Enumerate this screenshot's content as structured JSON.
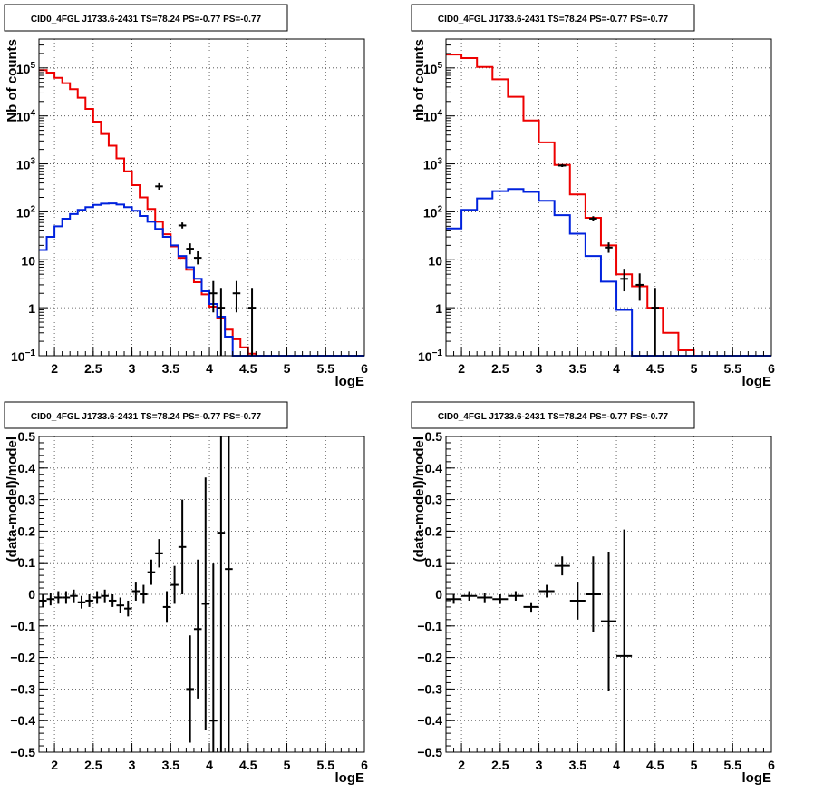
{
  "colors": {
    "data": "#000000",
    "total_model": "#ee0000",
    "component": "#0022dd",
    "grid": "#444444"
  },
  "chart_data": [
    {
      "type": "line",
      "title": "CID0_4FGL J1733.6-2431 TS=78.24 PS=-0.77 PS=-0.77",
      "xlabel": "logE",
      "ylabel": "Nb of counts",
      "xlim": [
        1.8,
        6.0
      ],
      "ylim": [
        0.1,
        400000
      ],
      "yscale": "log",
      "grid": true,
      "xticks": [
        "2",
        "2.5",
        "3",
        "3.5",
        "4",
        "4.5",
        "5",
        "5.5",
        "6"
      ],
      "yticks": [
        {
          "v": 0.1,
          "base": "10",
          "exp": "−1"
        },
        {
          "v": 1,
          "base": "1",
          "exp": ""
        },
        {
          "v": 10,
          "base": "10",
          "exp": ""
        },
        {
          "v": 100,
          "base": "10",
          "exp": "2"
        },
        {
          "v": 1000,
          "base": "10",
          "exp": "3"
        },
        {
          "v": 10000,
          "base": "10",
          "exp": "4"
        },
        {
          "v": 100000,
          "base": "10",
          "exp": "5"
        }
      ],
      "bin_edges": [
        1.8,
        1.9,
        2.0,
        2.1,
        2.2,
        2.3,
        2.4,
        2.5,
        2.6,
        2.7,
        2.8,
        2.9,
        3.0,
        3.1,
        3.2,
        3.3,
        3.4,
        3.5,
        3.6,
        3.7,
        3.8,
        3.9,
        4.0,
        4.1,
        4.2,
        4.3,
        4.4,
        4.5,
        4.6,
        4.7,
        4.8,
        4.9,
        5.0,
        5.1,
        5.2,
        5.3,
        5.4,
        5.5,
        5.6,
        5.7,
        5.8,
        5.9,
        6.0
      ],
      "series": [
        {
          "kind": "hist",
          "color": "total_model",
          "values": [
            90000,
            80000,
            62000,
            48000,
            36000,
            24000,
            14000,
            7600,
            4200,
            2400,
            1300,
            700,
            360,
            200,
            115,
            62,
            34,
            19,
            11,
            6.2,
            3.4,
            1.9,
            1.05,
            0.6,
            0.35,
            0.22,
            0.15,
            0.11,
            0.1,
            0.1,
            0.1,
            0.1,
            0.1,
            0.1,
            0.1,
            0.1,
            0.1,
            0.1,
            0.1,
            0.1,
            0.1,
            0.1
          ]
        },
        {
          "kind": "hist",
          "color": "component",
          "values": [
            16,
            30,
            50,
            72,
            90,
            110,
            125,
            140,
            148,
            150,
            142,
            125,
            105,
            82,
            62,
            44,
            30,
            20,
            12,
            7,
            4,
            2.2,
            1.2,
            0.65,
            0.25,
            0.1,
            0.1,
            0.1,
            0.1,
            0.1,
            0.1,
            0.1,
            0.1,
            0.1,
            0.1,
            0.1,
            0.1,
            0.1,
            0.1,
            0.1,
            0.1,
            0.1
          ]
        },
        {
          "kind": "errorbar",
          "color": "data",
          "points": [
            [
              3.35,
              340,
              290,
              395
            ],
            [
              3.65,
              52,
              45,
              60
            ],
            [
              3.75,
              17,
              13,
              22
            ],
            [
              3.85,
              11,
              8,
              15
            ],
            [
              4.05,
              2,
              0.8,
              3.6
            ],
            [
              4.15,
              1,
              0.1,
              2.6
            ],
            [
              4.35,
              2,
              0.8,
              3.6
            ],
            [
              4.55,
              1,
              0.1,
              2.6
            ]
          ]
        }
      ]
    },
    {
      "type": "line",
      "title": "CID0_4FGL J1733.6-2431 TS=78.24 PS=-0.77 PS=-0.77",
      "xlabel": "logE",
      "ylabel": "nb of counts",
      "xlim": [
        1.8,
        6.0
      ],
      "ylim": [
        0.1,
        400000
      ],
      "yscale": "log",
      "grid": true,
      "xticks": [
        "2",
        "2.5",
        "3",
        "3.5",
        "4",
        "4.5",
        "5",
        "5.5",
        "6"
      ],
      "yticks": [
        {
          "v": 0.1,
          "base": "10",
          "exp": "−1"
        },
        {
          "v": 1,
          "base": "1",
          "exp": ""
        },
        {
          "v": 10,
          "base": "10",
          "exp": ""
        },
        {
          "v": 100,
          "base": "10",
          "exp": "2"
        },
        {
          "v": 1000,
          "base": "10",
          "exp": "3"
        },
        {
          "v": 10000,
          "base": "10",
          "exp": "4"
        },
        {
          "v": 100000,
          "base": "10",
          "exp": "5"
        }
      ],
      "bin_edges": [
        1.8,
        2.0,
        2.2,
        2.4,
        2.6,
        2.8,
        3.0,
        3.2,
        3.4,
        3.6,
        3.8,
        4.0,
        4.2,
        4.4,
        4.6,
        4.8,
        5.0,
        5.2,
        5.4,
        5.6,
        5.8,
        6.0
      ],
      "series": [
        {
          "kind": "hist",
          "color": "total_model",
          "values": [
            190000,
            160000,
            105000,
            58000,
            25000,
            8000,
            2800,
            950,
            230,
            75,
            20,
            5,
            2.8,
            1,
            0.3,
            0.13,
            0.1,
            0.1,
            0.1,
            0.1,
            0.1
          ]
        },
        {
          "kind": "hist",
          "color": "component",
          "values": [
            45,
            110,
            190,
            270,
            300,
            260,
            170,
            85,
            35,
            12,
            3.5,
            0.9,
            0.1,
            0.1,
            0.1,
            0.1,
            0.1,
            0.1,
            0.1,
            0.1,
            0.1
          ]
        },
        {
          "kind": "errorbar",
          "color": "data",
          "points": [
            [
              3.3,
              920,
              860,
              980
            ],
            [
              3.7,
              72,
              64,
              81
            ],
            [
              3.9,
              18,
              14,
              23
            ],
            [
              4.1,
              4,
              2.2,
              6.5
            ],
            [
              4.3,
              3,
              1.4,
              5.2
            ],
            [
              4.5,
              1,
              0.1,
              2.6
            ]
          ]
        }
      ]
    },
    {
      "type": "scatter",
      "title": "CID0_4FGL J1733.6-2431 TS=78.24 PS=-0.77 PS=-0.77",
      "xlabel": "logE",
      "ylabel": "(data-model)/model",
      "xlim": [
        1.8,
        6.0
      ],
      "ylim": [
        -0.5,
        0.5
      ],
      "grid": true,
      "xticks": [
        "2",
        "2.5",
        "3",
        "3.5",
        "4",
        "4.5",
        "5",
        "5.5",
        "6"
      ],
      "yticks": [
        "−0.5",
        "−0.4",
        "−0.3",
        "−0.2",
        "−0.1",
        "0",
        "0.1",
        "0.2",
        "0.3",
        "0.4",
        "0.5"
      ],
      "xerr": 0.05,
      "points": [
        [
          1.85,
          -0.02,
          0.02
        ],
        [
          1.95,
          -0.015,
          0.02
        ],
        [
          2.05,
          -0.01,
          0.02
        ],
        [
          2.15,
          -0.01,
          0.02
        ],
        [
          2.25,
          -0.005,
          0.02
        ],
        [
          2.35,
          -0.025,
          0.02
        ],
        [
          2.45,
          -0.02,
          0.02
        ],
        [
          2.55,
          -0.01,
          0.02
        ],
        [
          2.65,
          -0.005,
          0.02
        ],
        [
          2.75,
          -0.02,
          0.02
        ],
        [
          2.85,
          -0.035,
          0.025
        ],
        [
          2.95,
          -0.045,
          0.025
        ],
        [
          3.05,
          0.01,
          0.03
        ],
        [
          3.15,
          0.0,
          0.03
        ],
        [
          3.25,
          0.07,
          0.04
        ],
        [
          3.35,
          0.13,
          0.045
        ],
        [
          3.45,
          -0.04,
          0.05
        ],
        [
          3.55,
          0.03,
          0.06
        ],
        [
          3.65,
          0.15,
          0.15
        ],
        [
          3.75,
          -0.3,
          0.17
        ],
        [
          3.85,
          -0.11,
          0.22
        ],
        [
          3.95,
          -0.03,
          0.4
        ],
        [
          4.05,
          -0.4,
          0.5
        ],
        [
          4.15,
          0.195,
          0.7
        ],
        [
          4.25,
          0.08,
          0.9
        ]
      ]
    },
    {
      "type": "scatter",
      "title": "CID0_4FGL J1733.6-2431 TS=78.24 PS=-0.77 PS=-0.77",
      "xlabel": "logE",
      "ylabel": "(data-model)/model",
      "xlim": [
        1.8,
        6.0
      ],
      "ylim": [
        -0.5,
        0.5
      ],
      "grid": true,
      "xticks": [
        "2",
        "2.5",
        "3",
        "3.5",
        "4",
        "4.5",
        "5",
        "5.5",
        "6"
      ],
      "yticks": [
        "−0.5",
        "−0.4",
        "−0.3",
        "−0.2",
        "−0.1",
        "0",
        "0.1",
        "0.2",
        "0.3",
        "0.4",
        "0.5"
      ],
      "xerr": 0.1,
      "points": [
        [
          1.9,
          -0.015,
          0.015
        ],
        [
          2.1,
          -0.005,
          0.015
        ],
        [
          2.3,
          -0.01,
          0.015
        ],
        [
          2.5,
          -0.015,
          0.015
        ],
        [
          2.7,
          -0.005,
          0.015
        ],
        [
          2.9,
          -0.04,
          0.015
        ],
        [
          3.1,
          0.01,
          0.02
        ],
        [
          3.3,
          0.09,
          0.03
        ],
        [
          3.5,
          -0.02,
          0.06
        ],
        [
          3.7,
          0.0,
          0.12
        ],
        [
          3.9,
          -0.085,
          0.22
        ],
        [
          4.1,
          -0.195,
          0.4
        ]
      ]
    }
  ]
}
